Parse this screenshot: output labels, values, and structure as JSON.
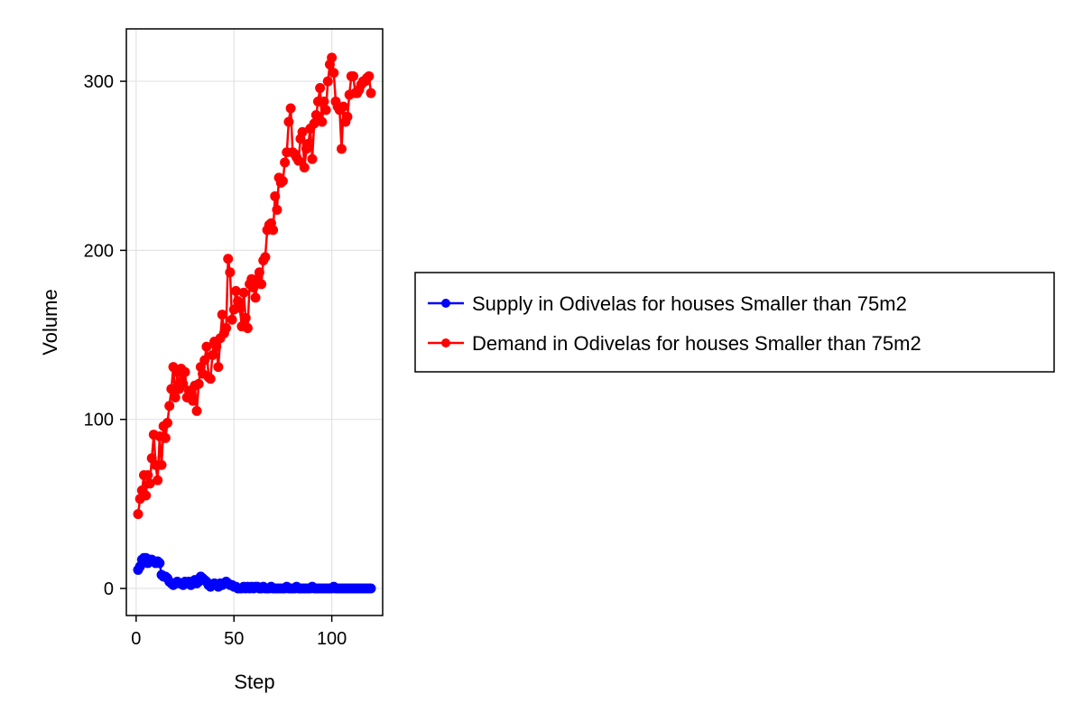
{
  "chart_data": {
    "type": "line",
    "xlabel": "Step",
    "ylabel": "Volume",
    "xlim": [
      -5,
      126
    ],
    "ylim": [
      -16,
      331
    ],
    "xticks": [
      0,
      50,
      100
    ],
    "yticks": [
      0,
      100,
      200,
      300
    ],
    "grid": true,
    "legend_position": "right",
    "series": [
      {
        "name": "Supply in Odivelas for houses Smaller than 75m2",
        "color": "#0000ff",
        "x": [
          1,
          2,
          3,
          4,
          5,
          6,
          7,
          8,
          9,
          10,
          11,
          12,
          13,
          14,
          15,
          16,
          17,
          18,
          19,
          20,
          21,
          22,
          23,
          24,
          25,
          26,
          27,
          28,
          29,
          30,
          31,
          32,
          33,
          34,
          35,
          36,
          37,
          38,
          39,
          40,
          41,
          42,
          43,
          44,
          45,
          46,
          47,
          48,
          49,
          50,
          51,
          52,
          53,
          54,
          55,
          56,
          57,
          58,
          59,
          60,
          61,
          62,
          63,
          64,
          65,
          66,
          67,
          68,
          69,
          70,
          71,
          72,
          73,
          74,
          75,
          76,
          77,
          78,
          79,
          80,
          81,
          82,
          83,
          84,
          85,
          86,
          87,
          88,
          89,
          90,
          91,
          92,
          93,
          94,
          95,
          96,
          97,
          98,
          99,
          100,
          101,
          102,
          103,
          104,
          105,
          106,
          107,
          108,
          109,
          110,
          111,
          112,
          113,
          114,
          115,
          116,
          117,
          118,
          119,
          120
        ],
        "y": [
          11,
          13,
          17,
          18,
          18,
          15,
          17,
          17,
          16,
          15,
          16,
          15,
          8,
          7,
          7,
          6,
          4,
          3,
          2,
          3,
          4,
          3,
          3,
          2,
          4,
          3,
          4,
          2,
          3,
          5,
          3,
          4,
          7,
          6,
          5,
          4,
          2,
          1,
          2,
          3,
          2,
          1,
          3,
          2,
          3,
          4,
          3,
          2,
          2,
          1,
          1,
          0,
          0,
          0,
          1,
          0,
          1,
          0,
          1,
          0,
          1,
          1,
          0,
          0,
          1,
          0,
          0,
          0,
          1,
          0,
          0,
          0,
          0,
          0,
          0,
          0,
          1,
          0,
          0,
          0,
          0,
          1,
          0,
          0,
          0,
          0,
          0,
          0,
          0,
          1,
          0,
          0,
          0,
          0,
          0,
          0,
          0,
          0,
          0,
          0,
          1,
          0,
          0,
          0,
          0,
          0,
          0,
          0,
          0,
          0,
          0,
          0,
          0,
          0,
          0,
          0,
          0,
          0,
          0,
          0
        ]
      },
      {
        "name": "Demand in Odivelas for houses Smaller than 75m2",
        "color": "#ff0000",
        "x": [
          1,
          2,
          3,
          4,
          5,
          6,
          7,
          8,
          9,
          10,
          11,
          12,
          13,
          14,
          15,
          16,
          17,
          18,
          19,
          20,
          21,
          22,
          23,
          24,
          25,
          26,
          27,
          28,
          29,
          30,
          31,
          32,
          33,
          34,
          35,
          36,
          37,
          38,
          39,
          40,
          41,
          42,
          43,
          44,
          45,
          46,
          47,
          48,
          49,
          50,
          51,
          52,
          53,
          54,
          55,
          56,
          57,
          58,
          59,
          60,
          61,
          62,
          63,
          64,
          65,
          66,
          67,
          68,
          69,
          70,
          71,
          72,
          73,
          74,
          75,
          76,
          77,
          78,
          79,
          80,
          81,
          82,
          83,
          84,
          85,
          86,
          87,
          88,
          89,
          90,
          91,
          92,
          93,
          94,
          95,
          96,
          97,
          98,
          99,
          100,
          101,
          102,
          103,
          104,
          105,
          106,
          107,
          108,
          109,
          110,
          111,
          112,
          113,
          114,
          115,
          116,
          117,
          118,
          119,
          120
        ],
        "y": [
          44,
          53,
          58,
          67,
          55,
          67,
          62,
          77,
          91,
          73,
          64,
          90,
          73,
          96,
          89,
          98,
          108,
          118,
          131,
          113,
          128,
          118,
          130,
          121,
          128,
          113,
          117,
          116,
          111,
          120,
          105,
          121,
          131,
          127,
          135,
          143,
          125,
          124,
          138,
          146,
          143,
          131,
          148,
          162,
          151,
          154,
          195,
          187,
          159,
          165,
          176,
          170,
          166,
          155,
          175,
          160,
          154,
          180,
          183,
          178,
          172,
          183,
          187,
          180,
          194,
          196,
          212,
          215,
          216,
          212,
          232,
          224,
          243,
          240,
          241,
          252,
          258,
          276,
          284,
          258,
          257,
          255,
          253,
          266,
          270,
          249,
          260,
          263,
          272,
          254,
          275,
          280,
          288,
          296,
          276,
          288,
          283,
          300,
          310,
          314,
          305,
          288,
          285,
          283,
          260,
          285,
          276,
          279,
          292,
          303,
          303,
          293,
          293,
          295,
          298,
          300,
          300,
          302,
          303,
          293
        ]
      }
    ]
  }
}
